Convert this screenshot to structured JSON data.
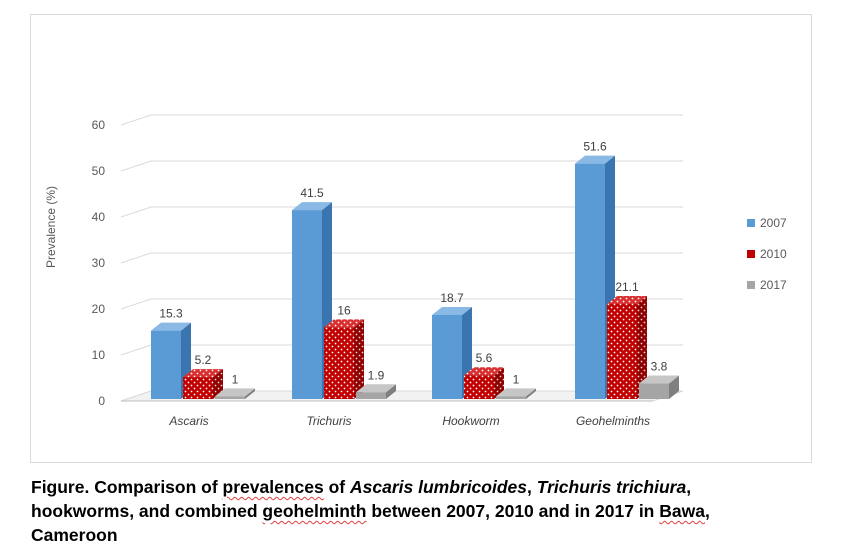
{
  "chart_data": {
    "type": "bar",
    "categories": [
      "Ascaris",
      "Trichuris",
      "Hookworm",
      "Geohelminths"
    ],
    "series": [
      {
        "name": "2007",
        "values": [
          15.3,
          41.5,
          18.7,
          51.6
        ],
        "color": "#5b9bd5",
        "pattern": "solid"
      },
      {
        "name": "2010",
        "values": [
          5.2,
          16,
          5.6,
          21.1
        ],
        "color": "#c00000",
        "pattern": "dotted"
      },
      {
        "name": "2017",
        "values": [
          1,
          1.9,
          1,
          3.8
        ],
        "color": "#a5a5a5",
        "pattern": "solid"
      }
    ],
    "data_labels": [
      [
        "15.3",
        "41.5",
        "18.7",
        "51.6"
      ],
      [
        "5.2",
        "16",
        "5.6",
        "21.1"
      ],
      [
        "1",
        "1.9",
        "1",
        "3.8"
      ]
    ],
    "ylabel": "Prevalence (%)",
    "xlabel": "",
    "ylim": [
      0,
      60
    ],
    "yticks": [
      "0",
      "10",
      "20",
      "30",
      "40",
      "50",
      "60"
    ],
    "grid": true,
    "legend_position": "right",
    "style": "3d-column"
  },
  "caption": {
    "p1": "Figure. Comparison of ",
    "p2": "prevalences",
    "p3": " of ",
    "p4": "Ascaris lumbricoides",
    "p5": ", ",
    "p6": "Trichuris trichiura",
    "p7": ",",
    "p8": "hookworms, and combined ",
    "p9": "geohelminth",
    "p10": " between 2007, 2010 and in 2017 in ",
    "p11": "Bawa",
    "p12": ",",
    "p13": "Cameroon"
  }
}
